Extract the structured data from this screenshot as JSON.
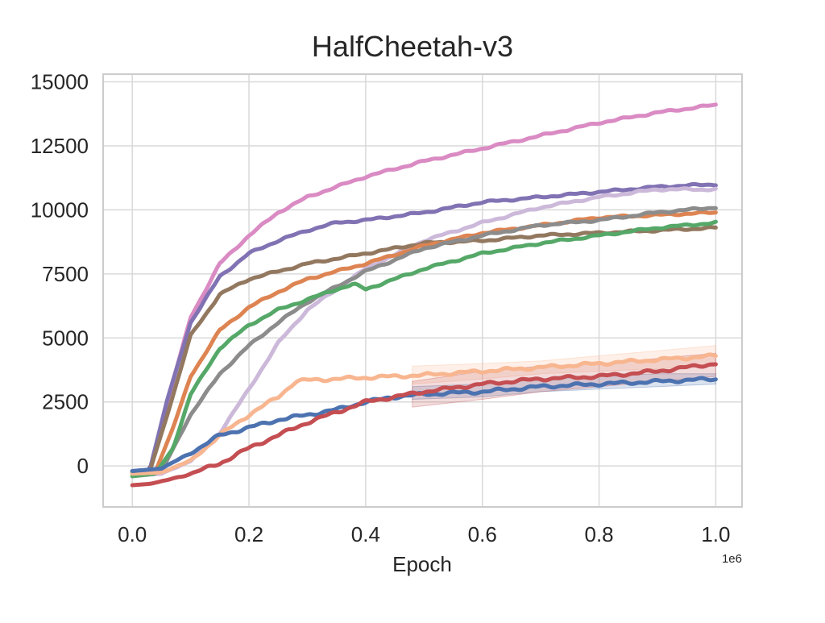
{
  "chart_data": {
    "type": "line",
    "title": "HalfCheetah-v3",
    "xlabel": "Epoch",
    "ylabel": "",
    "x_offset_label": "1e6",
    "xlim": [
      -0.05,
      1.045
    ],
    "ylim": [
      -1600,
      15300
    ],
    "grid": true,
    "legend": "none",
    "x_ticks": [
      {
        "value": 0.0,
        "label": "0.0"
      },
      {
        "value": 0.2,
        "label": "0.2"
      },
      {
        "value": 0.4,
        "label": "0.4"
      },
      {
        "value": 0.6,
        "label": "0.6"
      },
      {
        "value": 0.8,
        "label": "0.8"
      },
      {
        "value": 1.0,
        "label": "1.0"
      }
    ],
    "y_ticks": [
      {
        "value": 0,
        "label": "0"
      },
      {
        "value": 2500,
        "label": "2500"
      },
      {
        "value": 5000,
        "label": "5000"
      },
      {
        "value": 7500,
        "label": "7500"
      },
      {
        "value": 10000,
        "label": "10000"
      },
      {
        "value": 12500,
        "label": "12500"
      },
      {
        "value": 15000,
        "label": "15000"
      }
    ],
    "series": [
      {
        "color": "#da8bc3",
        "x": [
          0.0,
          0.03,
          0.06,
          0.1,
          0.15,
          0.2,
          0.25,
          0.3,
          0.4,
          0.5,
          0.6,
          0.7,
          0.8,
          0.9,
          1.0
        ],
        "y": [
          -200,
          -150,
          2500,
          5800,
          7900,
          9000,
          9900,
          10500,
          11300,
          11900,
          12400,
          12900,
          13400,
          13800,
          14100
        ]
      },
      {
        "color": "#8172b3",
        "x": [
          0.0,
          0.03,
          0.06,
          0.1,
          0.15,
          0.2,
          0.25,
          0.3,
          0.35,
          0.4,
          0.5,
          0.6,
          0.7,
          0.8,
          0.9,
          1.0
        ],
        "y": [
          -200,
          -150,
          2600,
          5600,
          7400,
          8300,
          8800,
          9200,
          9500,
          9600,
          9900,
          10300,
          10500,
          10700,
          10900,
          11000
        ]
      },
      {
        "color": "#ccb9da",
        "x": [
          0.0,
          0.05,
          0.1,
          0.15,
          0.2,
          0.25,
          0.3,
          0.35,
          0.4,
          0.5,
          0.6,
          0.7,
          0.8,
          0.9,
          1.0
        ],
        "y": [
          -400,
          -300,
          200,
          1300,
          3000,
          4800,
          6100,
          6900,
          7700,
          8800,
          9500,
          10100,
          10500,
          10800,
          10800
        ]
      },
      {
        "color": "#937860",
        "x": [
          0.0,
          0.03,
          0.06,
          0.1,
          0.15,
          0.2,
          0.25,
          0.3,
          0.4,
          0.5,
          0.6,
          0.7,
          0.8,
          0.9,
          1.0
        ],
        "y": [
          -250,
          -200,
          2000,
          5100,
          6700,
          7300,
          7600,
          7900,
          8300,
          8700,
          8800,
          9000,
          9100,
          9200,
          9300
        ]
      },
      {
        "color": "#dd8452",
        "x": [
          0.0,
          0.04,
          0.07,
          0.1,
          0.15,
          0.2,
          0.25,
          0.3,
          0.4,
          0.5,
          0.6,
          0.7,
          0.8,
          0.9,
          1.0
        ],
        "y": [
          -300,
          -200,
          1500,
          3500,
          5300,
          6200,
          6800,
          7300,
          7900,
          8600,
          9100,
          9400,
          9700,
          9800,
          9900
        ]
      },
      {
        "color": "#8c8c8c",
        "x": [
          0.0,
          0.05,
          0.1,
          0.15,
          0.2,
          0.25,
          0.3,
          0.35,
          0.4,
          0.5,
          0.6,
          0.7,
          0.8,
          0.9,
          1.0
        ],
        "y": [
          -300,
          -200,
          2000,
          3600,
          4700,
          5600,
          6400,
          7000,
          7600,
          8500,
          9000,
          9400,
          9600,
          9900,
          10100
        ]
      },
      {
        "color": "#55a868",
        "x": [
          0.0,
          0.04,
          0.07,
          0.1,
          0.15,
          0.2,
          0.25,
          0.3,
          0.35,
          0.38,
          0.4,
          0.5,
          0.6,
          0.7,
          0.8,
          0.9,
          1.0
        ],
        "y": [
          -400,
          -300,
          700,
          2800,
          4600,
          5500,
          6100,
          6500,
          6900,
          7100,
          6900,
          7700,
          8300,
          8700,
          9000,
          9300,
          9500
        ]
      },
      {
        "color": "#f8b690",
        "x": [
          0.0,
          0.05,
          0.1,
          0.15,
          0.2,
          0.25,
          0.28,
          0.3,
          0.4,
          0.5,
          0.6,
          0.7,
          0.8,
          0.9,
          1.0
        ],
        "y": [
          -300,
          -250,
          200,
          1200,
          2000,
          2700,
          3300,
          3350,
          3450,
          3550,
          3700,
          3850,
          4000,
          4150,
          4300
        ],
        "band": {
          "x": [
            0.48,
            0.6,
            0.7,
            0.8,
            0.9,
            1.0
          ],
          "lower": [
            3200,
            3400,
            3600,
            3700,
            3800,
            3900
          ],
          "upper": [
            3900,
            4000,
            4100,
            4300,
            4500,
            4700
          ]
        }
      },
      {
        "color": "#4c72b0",
        "x": [
          0.0,
          0.05,
          0.1,
          0.15,
          0.2,
          0.25,
          0.3,
          0.35,
          0.4,
          0.45,
          0.5,
          0.6,
          0.7,
          0.8,
          0.9,
          1.0
        ],
        "y": [
          -200,
          -100,
          500,
          1200,
          1500,
          1800,
          2000,
          2200,
          2500,
          2700,
          2800,
          2900,
          3100,
          3200,
          3300,
          3400
        ],
        "band": {
          "x": [
            0.48,
            0.6,
            0.7,
            0.8,
            0.9,
            1.0
          ],
          "lower": [
            2600,
            2700,
            2900,
            3000,
            3100,
            3200
          ],
          "upper": [
            3100,
            3200,
            3400,
            3500,
            3600,
            3600
          ]
        }
      },
      {
        "color": "#c44e52",
        "x": [
          0.0,
          0.03,
          0.06,
          0.1,
          0.15,
          0.2,
          0.25,
          0.3,
          0.35,
          0.4,
          0.45,
          0.5,
          0.6,
          0.7,
          0.8,
          0.9,
          1.0
        ],
        "y": [
          -750,
          -700,
          -550,
          -300,
          100,
          700,
          1200,
          1700,
          2100,
          2500,
          2700,
          2900,
          3200,
          3400,
          3500,
          3700,
          4000
        ],
        "band": {
          "x": [
            0.48,
            0.6,
            0.7,
            0.8,
            0.9,
            1.0
          ],
          "lower": [
            2300,
            2600,
            2900,
            3100,
            3300,
            3500
          ],
          "upper": [
            3300,
            3700,
            3900,
            4000,
            4200,
            4400
          ]
        }
      }
    ]
  }
}
